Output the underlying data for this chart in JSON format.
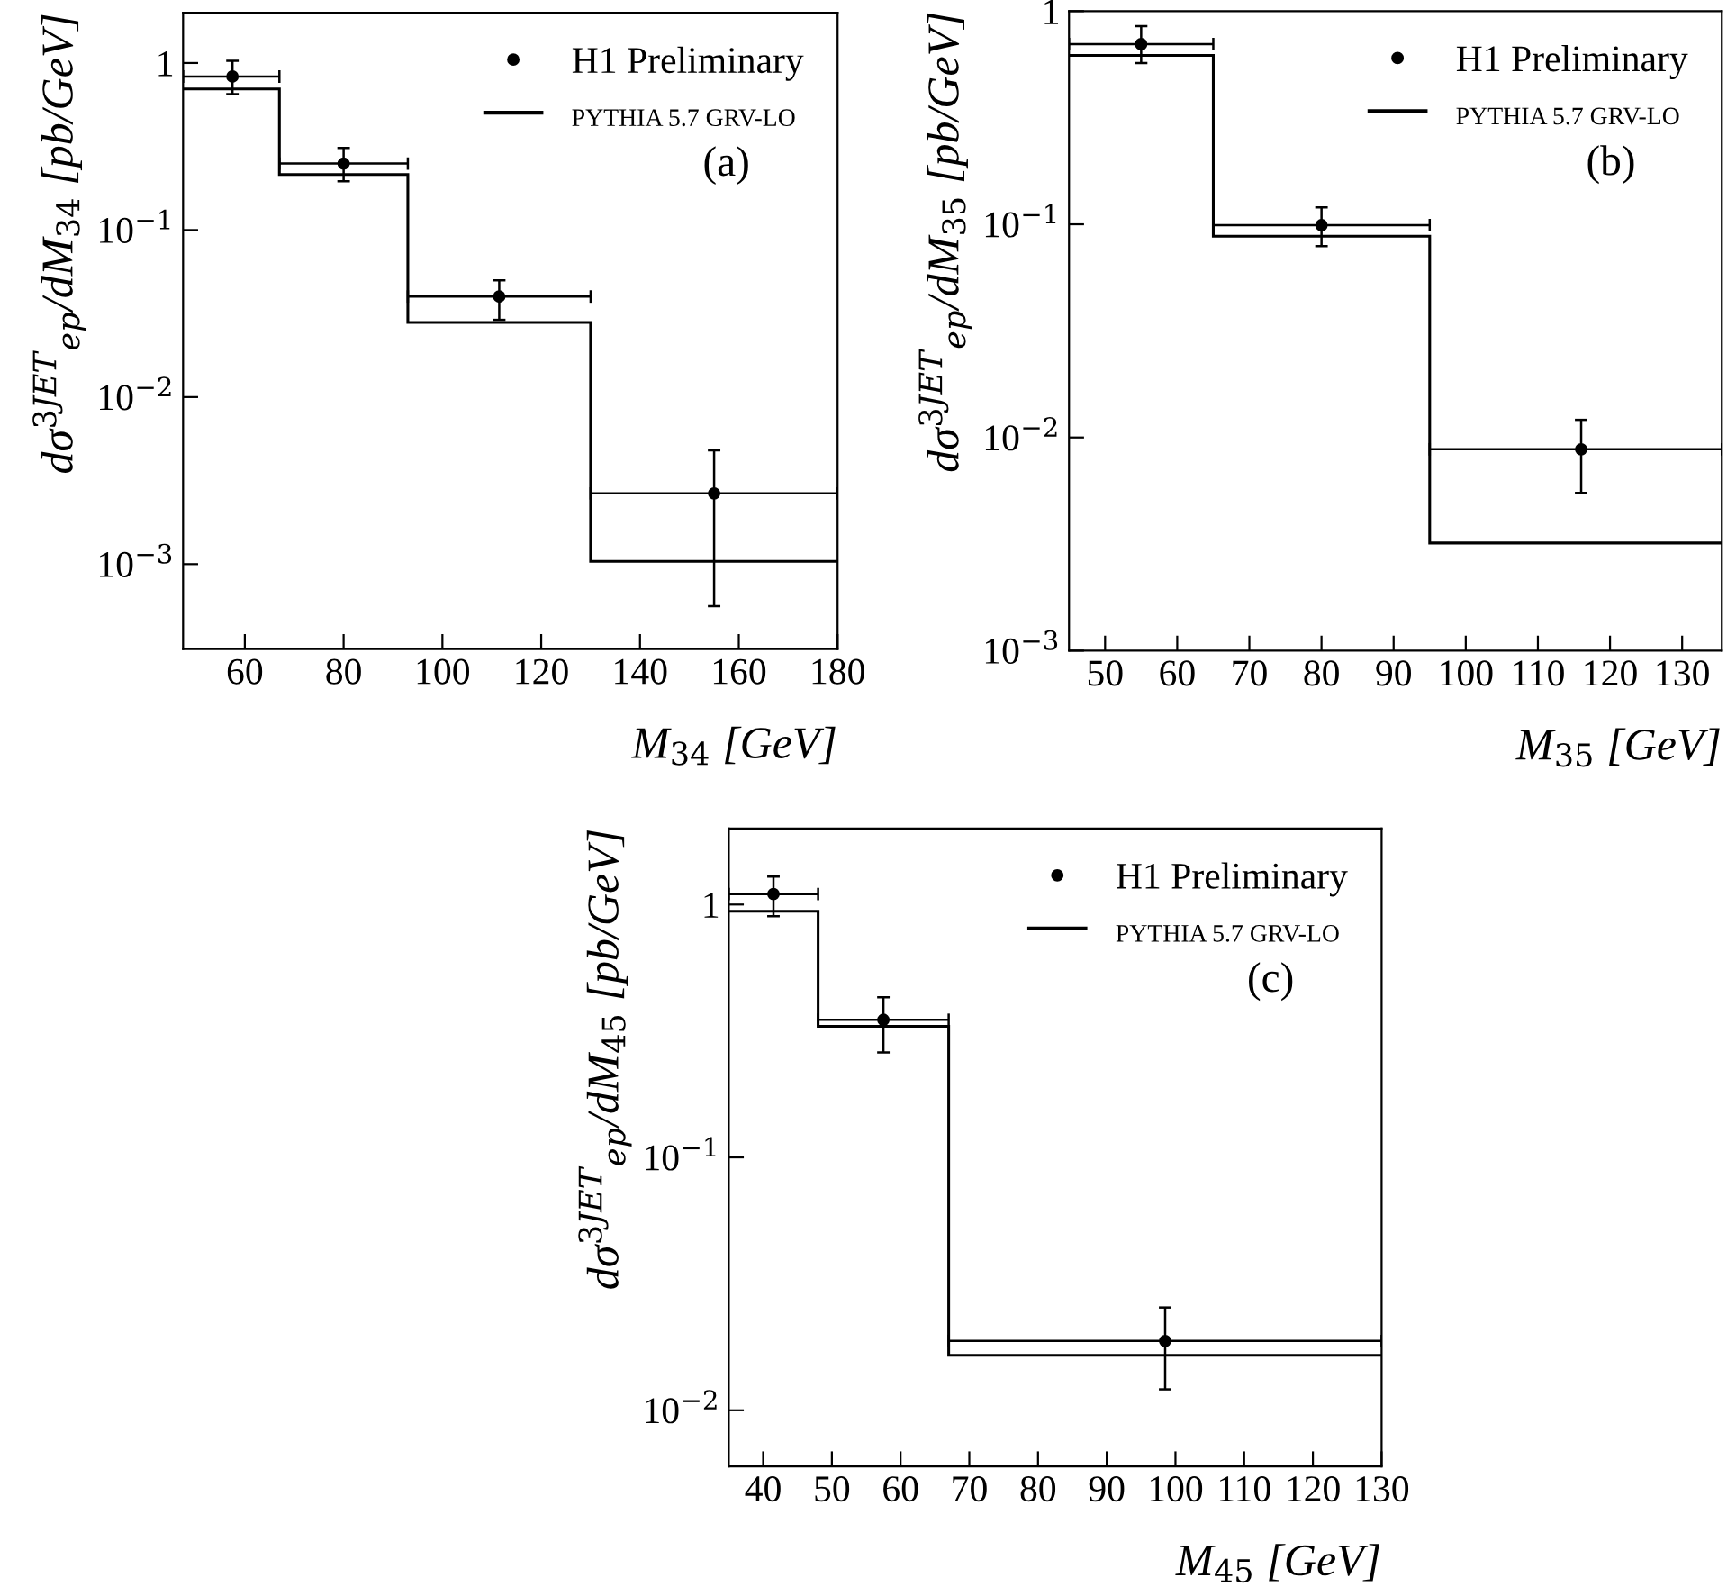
{
  "chart_data": [
    {
      "type": "scatter",
      "xlabel": "M$_{34}$ [GeV]",
      "ylabel": "dσ$^{3JET}$$_{ep}$/dM$_{34}$ [pb/GeV]",
      "log": "y",
      "xlim": [
        47.5,
        180
      ],
      "ylim": [
        0.00031,
        2.0
      ],
      "xticks": [
        60,
        80,
        100,
        120,
        140,
        160,
        180
      ],
      "yticks": [
        {
          "value": 0.001,
          "label": "10$^{−3}$"
        },
        {
          "value": 0.01,
          "label": "10$^{−2}$"
        },
        {
          "value": 0.1,
          "label": "10$^{−1}$"
        },
        1
      ],
      "grid": false,
      "legend": "top right",
      "marker": "circle",
      "annotations": [
        {
          "text": "(a)"
        }
      ],
      "series": [
        {
          "name": "H1 Preliminary",
          "color": "#000000",
          "x": [
            57.5,
            80,
            111.5,
            155
          ],
          "values": [
            0.83,
            0.25,
            0.04,
            0.00265
          ],
          "errors": [
            [
              0.65,
              1.03
            ],
            [
              0.196,
              0.31
            ],
            [
              0.029,
              0.05
            ],
            [
              0.00056,
              0.0048
            ]
          ],
          "xerrors": [
            [
              47.5,
              67
            ],
            [
              67,
              93
            ],
            [
              93,
              130
            ],
            [
              130,
              180
            ]
          ]
        },
        {
          "name": "PYTHIA 5.7 GRV-LO",
          "type": "histogram",
          "color": "#000000",
          "bins": [
            47.5,
            67,
            93,
            130,
            180
          ],
          "values": [
            0.7,
            0.215,
            0.028,
            0.00104
          ]
        }
      ]
    },
    {
      "type": "scatter",
      "xlabel": "M$_{35}$ [GeV]",
      "ylabel": "dσ$^{3JET}$$_{ep}$/dM$_{35}$ [pb/GeV]",
      "log": "y",
      "xlim": [
        45,
        135.5
      ],
      "ylim": [
        0.001,
        1
      ],
      "xticks": [
        50,
        60,
        70,
        80,
        90,
        100,
        110,
        120,
        130
      ],
      "yticks": [
        {
          "value": 0.001,
          "label": "10$^{−3}$"
        },
        {
          "value": 0.01,
          "label": "10$^{−2}$"
        },
        {
          "value": 0.1,
          "label": "10$^{−1}$"
        },
        1
      ],
      "grid": false,
      "legend": "top right",
      "marker": "circle",
      "annotations": [
        {
          "text": "(b)"
        }
      ],
      "series": [
        {
          "name": "H1 Preliminary",
          "color": "#000000",
          "x": [
            55,
            80,
            116
          ],
          "values": [
            0.7,
            0.099,
            0.0088
          ],
          "errors": [
            [
              0.57,
              0.85
            ],
            [
              0.079,
              0.12
            ],
            [
              0.0055,
              0.0121
            ]
          ],
          "xerrors": [
            [
              45,
              65
            ],
            [
              65,
              95
            ],
            [
              95,
              135.5
            ]
          ]
        },
        {
          "name": "PYTHIA 5.7 GRV-LO",
          "type": "histogram",
          "color": "#000000",
          "bins": [
            45,
            65,
            95,
            135.5
          ],
          "values": [
            0.62,
            0.088,
            0.0032
          ]
        }
      ]
    },
    {
      "type": "scatter",
      "xlabel": "M$_{45}$ [GeV]",
      "ylabel": "dσ$^{3JET}$$_{ep}$/dM$_{45}$ [pb/GeV]",
      "log": "y",
      "xlim": [
        35,
        130
      ],
      "ylim": [
        0.006,
        2.0
      ],
      "xticks": [
        40,
        50,
        60,
        70,
        80,
        90,
        100,
        110,
        120,
        130
      ],
      "yticks": [
        {
          "value": 0.01,
          "label": "10$^{−2}$"
        },
        {
          "value": 0.1,
          "label": "10$^{−1}$"
        },
        1
      ],
      "grid": false,
      "legend": "top right",
      "marker": "circle",
      "annotations": [
        {
          "text": "(c)"
        }
      ],
      "series": [
        {
          "name": "H1 Preliminary",
          "color": "#000000",
          "x": [
            41.5,
            57.5,
            98.5
          ],
          "values": [
            1.1,
            0.35,
            0.0188
          ],
          "errors": [
            [
              0.9,
              1.29
            ],
            [
              0.26,
              0.43
            ],
            [
              0.0121,
              0.0255
            ]
          ],
          "xerrors": [
            [
              35,
              48
            ],
            [
              48,
              67
            ],
            [
              67,
              130
            ]
          ]
        },
        {
          "name": "PYTHIA 5.7 GRV-LO",
          "type": "histogram",
          "color": "#000000",
          "bins": [
            35,
            48,
            67,
            130
          ],
          "values": [
            0.94,
            0.33,
            0.0165
          ]
        }
      ]
    }
  ]
}
